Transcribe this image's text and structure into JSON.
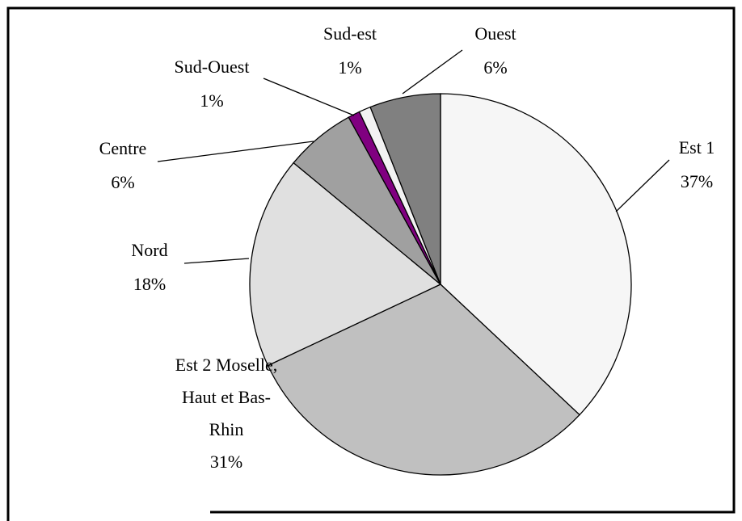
{
  "chart_data": {
    "type": "pie",
    "categories": [
      "Est 1",
      "Est 2 Moselle, Haut et Bas-Rhin",
      "Nord",
      "Centre",
      "Sud-Ouest",
      "Sud-est",
      "Ouest"
    ],
    "values": [
      37,
      31,
      18,
      6,
      1,
      1,
      6
    ],
    "value_labels": [
      "37%",
      "31%",
      "18%",
      "6%",
      "1%",
      "1%",
      "6%"
    ],
    "colors": [
      "#f6f6f6",
      "#c0c0c0",
      "#e0e0e0",
      "#a0a0a0",
      "#800080",
      "#f2f2f2",
      "#808080"
    ]
  }
}
